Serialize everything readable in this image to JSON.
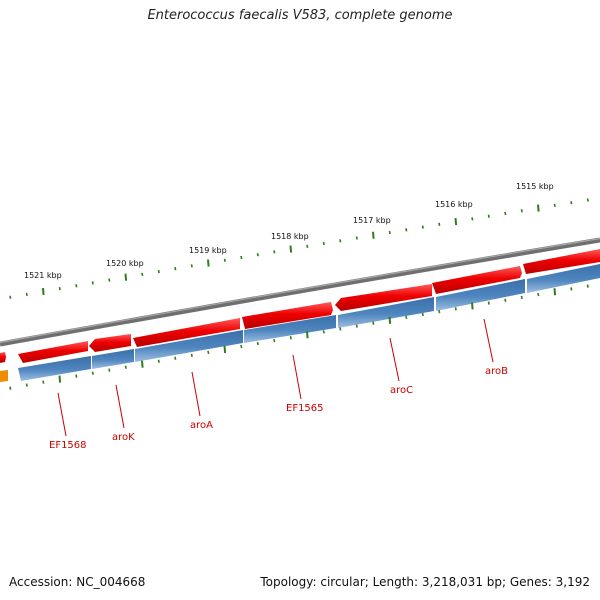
{
  "title": "Enterococcus faecalis V583, complete genome",
  "footer": {
    "accession": "Accession: NC_004668",
    "summary": "Topology: circular; Length: 3,218,031 bp; Genes: 3,192"
  },
  "colors": {
    "backbone": "#7a7a7a",
    "forward_gene": "#e60000",
    "reverse_gene": "#4a80b8",
    "ticks": "#2e7d1a",
    "labels": "#cc0000",
    "partial_gene": "#ff9900"
  },
  "scale_ticks": [
    {
      "label": "1521 kbp"
    },
    {
      "label": "1520 kbp"
    },
    {
      "label": "1519 kbp"
    },
    {
      "label": "1518 kbp"
    },
    {
      "label": "1517 kbp"
    },
    {
      "label": "1516 kbp"
    },
    {
      "label": "1515 kbp"
    }
  ],
  "gene_labels": [
    {
      "label": "EF1568"
    },
    {
      "label": "aroK"
    },
    {
      "label": "aroA"
    },
    {
      "label": "EF1565"
    },
    {
      "label": "aroC"
    },
    {
      "label": "aroB"
    }
  ]
}
